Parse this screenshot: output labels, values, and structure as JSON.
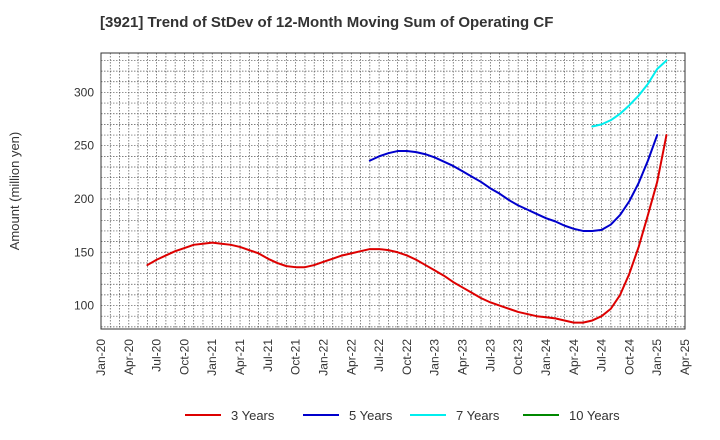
{
  "chart_data": {
    "type": "line",
    "title": "[3921]  Trend of StDev of 12-Month Moving Sum of Operating CF",
    "xlabel": "",
    "ylabel": "Amount (million yen)",
    "x_ticks": [
      "Jan-20",
      "Apr-20",
      "Jul-20",
      "Oct-20",
      "Jan-21",
      "Apr-21",
      "Jul-21",
      "Oct-21",
      "Jan-22",
      "Apr-22",
      "Jul-22",
      "Oct-22",
      "Jan-23",
      "Apr-23",
      "Jul-23",
      "Oct-23",
      "Jan-24",
      "Apr-24",
      "Jul-24",
      "Oct-24",
      "Jan-25",
      "Apr-25"
    ],
    "xlim": [
      "2020-01",
      "2025-04"
    ],
    "ylim": [
      78,
      337
    ],
    "y_ticks": [
      100,
      150,
      200,
      250,
      300
    ],
    "grid": true,
    "legend_position": "bottom",
    "series": [
      {
        "name": "3 Years",
        "color": "#dd0000",
        "points": [
          [
            "2020-06",
            138
          ],
          [
            "2020-07",
            143
          ],
          [
            "2020-08",
            147
          ],
          [
            "2020-09",
            151
          ],
          [
            "2020-10",
            154
          ],
          [
            "2020-11",
            157
          ],
          [
            "2020-12",
            158
          ],
          [
            "2021-01",
            159
          ],
          [
            "2021-02",
            158
          ],
          [
            "2021-03",
            157
          ],
          [
            "2021-04",
            155
          ],
          [
            "2021-05",
            152
          ],
          [
            "2021-06",
            149
          ],
          [
            "2021-07",
            144
          ],
          [
            "2021-08",
            140
          ],
          [
            "2021-09",
            137
          ],
          [
            "2021-10",
            136
          ],
          [
            "2021-11",
            136
          ],
          [
            "2021-12",
            138
          ],
          [
            "2022-01",
            141
          ],
          [
            "2022-02",
            144
          ],
          [
            "2022-03",
            147
          ],
          [
            "2022-04",
            149
          ],
          [
            "2022-05",
            151
          ],
          [
            "2022-06",
            153
          ],
          [
            "2022-07",
            153
          ],
          [
            "2022-08",
            152
          ],
          [
            "2022-09",
            150
          ],
          [
            "2022-10",
            147
          ],
          [
            "2022-11",
            143
          ],
          [
            "2022-12",
            138
          ],
          [
            "2023-01",
            133
          ],
          [
            "2023-02",
            128
          ],
          [
            "2023-03",
            122
          ],
          [
            "2023-04",
            117
          ],
          [
            "2023-05",
            112
          ],
          [
            "2023-06",
            107
          ],
          [
            "2023-07",
            103
          ],
          [
            "2023-08",
            100
          ],
          [
            "2023-09",
            97
          ],
          [
            "2023-10",
            94
          ],
          [
            "2023-11",
            92
          ],
          [
            "2023-12",
            90
          ],
          [
            "2024-01",
            89
          ],
          [
            "2024-02",
            88
          ],
          [
            "2024-03",
            86
          ],
          [
            "2024-04",
            84
          ],
          [
            "2024-05",
            84
          ],
          [
            "2024-06",
            86
          ],
          [
            "2024-07",
            90
          ],
          [
            "2024-08",
            97
          ],
          [
            "2024-09",
            110
          ],
          [
            "2024-10",
            130
          ],
          [
            "2024-11",
            155
          ],
          [
            "2024-12",
            185
          ],
          [
            "2025-01",
            216
          ],
          [
            "2025-02",
            260
          ]
        ]
      },
      {
        "name": "5 Years",
        "color": "#0000cc",
        "points": [
          [
            "2022-06",
            236
          ],
          [
            "2022-07",
            240
          ],
          [
            "2022-08",
            243
          ],
          [
            "2022-09",
            245
          ],
          [
            "2022-10",
            245
          ],
          [
            "2022-11",
            244
          ],
          [
            "2022-12",
            242
          ],
          [
            "2023-01",
            239
          ],
          [
            "2023-02",
            235
          ],
          [
            "2023-03",
            231
          ],
          [
            "2023-04",
            226
          ],
          [
            "2023-05",
            221
          ],
          [
            "2023-06",
            216
          ],
          [
            "2023-07",
            210
          ],
          [
            "2023-08",
            205
          ],
          [
            "2023-09",
            199
          ],
          [
            "2023-10",
            194
          ],
          [
            "2023-11",
            190
          ],
          [
            "2023-12",
            186
          ],
          [
            "2024-01",
            182
          ],
          [
            "2024-02",
            179
          ],
          [
            "2024-03",
            175
          ],
          [
            "2024-04",
            172
          ],
          [
            "2024-05",
            170
          ],
          [
            "2024-06",
            170
          ],
          [
            "2024-07",
            171
          ],
          [
            "2024-08",
            176
          ],
          [
            "2024-09",
            185
          ],
          [
            "2024-10",
            198
          ],
          [
            "2024-11",
            215
          ],
          [
            "2024-12",
            236
          ],
          [
            "2025-01",
            260
          ]
        ]
      },
      {
        "name": "7 Years",
        "color": "#00eeee",
        "points": [
          [
            "2024-06",
            268
          ],
          [
            "2024-07",
            270
          ],
          [
            "2024-08",
            274
          ],
          [
            "2024-09",
            280
          ],
          [
            "2024-10",
            288
          ],
          [
            "2024-11",
            297
          ],
          [
            "2024-12",
            308
          ],
          [
            "2025-01",
            322
          ],
          [
            "2025-02",
            330
          ]
        ]
      },
      {
        "name": "10 Years",
        "color": "#008800",
        "points": []
      }
    ]
  }
}
